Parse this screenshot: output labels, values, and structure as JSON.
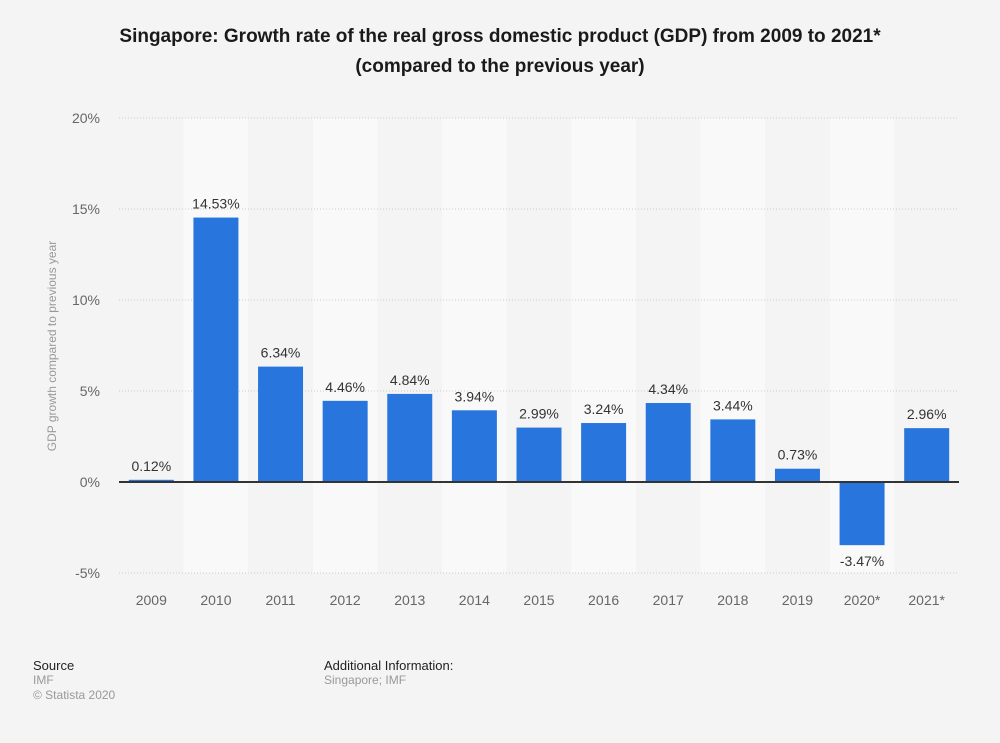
{
  "title_line1": "Singapore: Growth rate of the real gross domestic product (GDP) from 2009 to 2021*",
  "title_line2": "(compared to the previous year)",
  "chart_data": {
    "type": "bar",
    "title": "Singapore: Growth rate of the real gross domestic product (GDP) from 2009 to 2021* (compared to the previous year)",
    "xlabel": "",
    "ylabel": "GDP growth compared to previous year",
    "categories": [
      "2009",
      "2010",
      "2011",
      "2012",
      "2013",
      "2014",
      "2015",
      "2016",
      "2017",
      "2018",
      "2019",
      "2020*",
      "2021*"
    ],
    "values": [
      0.12,
      14.53,
      6.34,
      4.46,
      4.84,
      3.94,
      2.99,
      3.24,
      4.34,
      3.44,
      0.73,
      -3.47,
      2.96
    ],
    "data_labels": [
      "0.12%",
      "14.53%",
      "6.34%",
      "4.46%",
      "4.84%",
      "3.94%",
      "2.99%",
      "3.24%",
      "4.34%",
      "3.44%",
      "0.73%",
      "-3.47%",
      "2.96%"
    ],
    "ylim": [
      -5,
      20
    ],
    "yticks": [
      -5,
      0,
      5,
      10,
      15,
      20
    ],
    "ytick_labels": [
      "-5%",
      "0%",
      "5%",
      "10%",
      "15%",
      "20%"
    ],
    "grid": true,
    "legend": "none",
    "bar_color": "#2876dd"
  },
  "footer": {
    "source_heading": "Source",
    "source_value": "IMF",
    "copyright": "© Statista 2020",
    "additional_heading": "Additional Information:",
    "additional_value": "Singapore; IMF"
  }
}
